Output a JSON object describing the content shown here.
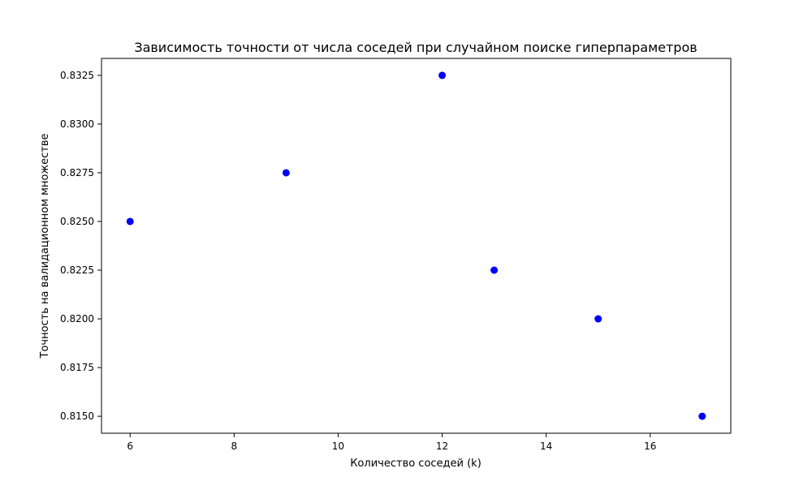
{
  "chart_data": {
    "type": "scatter",
    "title": "Зависимость точности от числа соседей при случайном поиске гиперпараметров",
    "xlabel": "Количество соседей (k)",
    "ylabel": "Точность на валидационном множестве",
    "xlim": [
      5.45,
      17.55
    ],
    "ylim": [
      0.81413,
      0.83337
    ],
    "x_ticks": [
      6,
      8,
      10,
      12,
      14,
      16
    ],
    "x_tick_labels": [
      "6",
      "8",
      "10",
      "12",
      "14",
      "16"
    ],
    "y_ticks": [
      0.815,
      0.8175,
      0.82,
      0.8225,
      0.825,
      0.8275,
      0.83,
      0.8325
    ],
    "y_tick_labels": [
      "0.8150",
      "0.8175",
      "0.8200",
      "0.8225",
      "0.8250",
      "0.8275",
      "0.8300",
      "0.8325"
    ],
    "grid": false,
    "legend": null,
    "marker_color": "#0000ff",
    "points": [
      {
        "x": 6,
        "y": 0.825
      },
      {
        "x": 9,
        "y": 0.8275
      },
      {
        "x": 12,
        "y": 0.8325
      },
      {
        "x": 13,
        "y": 0.8225
      },
      {
        "x": 15,
        "y": 0.82
      },
      {
        "x": 17,
        "y": 0.815
      }
    ]
  }
}
